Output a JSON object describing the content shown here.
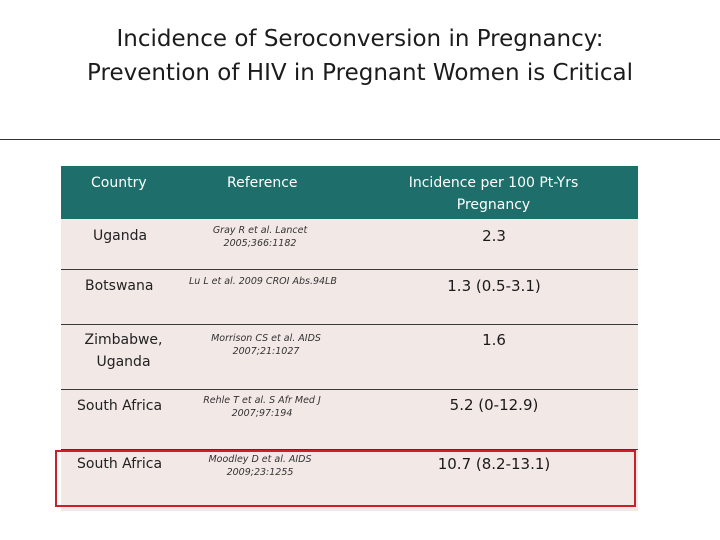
{
  "title": {
    "line1": "Incidence of Seroconversion in Pregnancy:",
    "line2": "Prevention of HIV in Pregnant Women is Critical"
  },
  "table": {
    "headers": {
      "country": "Country",
      "reference": "Reference",
      "incidence_line1": "Incidence per 100 Pt-Yrs",
      "incidence_line2": "Pregnancy"
    },
    "rows": [
      {
        "country_line1": "Uganda",
        "country_line2": "",
        "ref_line1": "Gray R et al. Lancet",
        "ref_line2": "2005;366:1182",
        "incidence": "2.3"
      },
      {
        "country_line1": "Botswana",
        "country_line2": "",
        "ref_line1": "Lu L et al. 2009 CROI Abs.94LB",
        "ref_line2": "",
        "incidence": "1.3 (0.5-3.1)"
      },
      {
        "country_line1": "Zimbabwe,",
        "country_line2": "Uganda",
        "ref_line1": "Morrison CS et al.  AIDS",
        "ref_line2": "2007;21:1027",
        "incidence": "1.6"
      },
      {
        "country_line1": "South Africa",
        "country_line2": "",
        "ref_line1": "Rehle T et al.  S Afr Med J",
        "ref_line2": "2007;97:194",
        "incidence": "5.2 (0-12.9)"
      },
      {
        "country_line1": "South Africa",
        "country_line2": "",
        "ref_line1": "Moodley D et al.  AIDS",
        "ref_line2": "2009;23:1255",
        "incidence": "10.7 (8.2-13.1)"
      }
    ]
  },
  "colors": {
    "header_bg": "#1e6e6b",
    "row_bg": "#f2e8e6",
    "highlight_border": "#cc1f2a"
  }
}
